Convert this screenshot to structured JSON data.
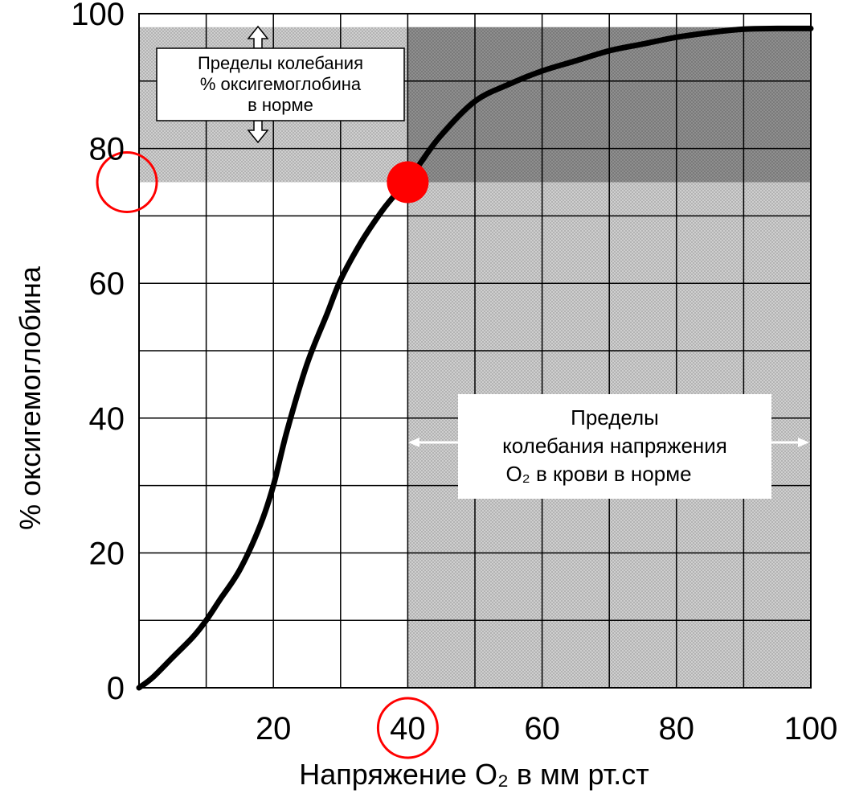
{
  "chart_data": {
    "type": "line",
    "xlabel": "Напряжение O₂ в мм рт.ст",
    "ylabel": "% оксигемоглобина",
    "xlim": [
      0,
      100
    ],
    "ylim": [
      0,
      100
    ],
    "x_ticks": [
      20,
      40,
      60,
      80,
      100
    ],
    "y_ticks": [
      0,
      20,
      40,
      60,
      80,
      100
    ],
    "x_tick_labels": [
      "20",
      "40",
      "60",
      "80",
      "100"
    ],
    "y_tick_labels": [
      "0",
      "20",
      "40",
      "60",
      "80",
      "100"
    ],
    "grid": true,
    "x_grid_step": 10,
    "y_grid_step": 10,
    "series": [
      {
        "x": [
          0,
          2,
          5,
          8,
          10,
          12,
          15,
          18,
          20,
          22,
          25,
          28,
          30,
          33,
          36,
          38,
          40,
          42,
          45,
          50,
          55,
          60,
          65,
          70,
          75,
          80,
          85,
          90,
          95,
          100
        ],
        "y": [
          0,
          1.5,
          4.5,
          7.5,
          10,
          13,
          17.5,
          24,
          30,
          38,
          48,
          55.5,
          60.5,
          66,
          70.5,
          73,
          75,
          78,
          82,
          87,
          89.5,
          91.5,
          93,
          94.5,
          95.5,
          96.5,
          97.2,
          97.7,
          97.8,
          97.8
        ],
        "color": "#000000"
      }
    ],
    "shaded_regions": [
      {
        "label": "normal_oxyhemoglobin_range",
        "y_range": [
          75,
          98
        ]
      },
      {
        "label": "normal_o2_tension_range",
        "x_range": [
          40,
          100
        ]
      }
    ],
    "highlight_point": {
      "x": 40,
      "y": 75,
      "color": "#ff0000"
    },
    "highlight_circles": [
      {
        "axis": "y",
        "value": 75,
        "color": "#ff0000"
      },
      {
        "axis": "x",
        "value": 40,
        "color": "#ff0000"
      }
    ],
    "annotations": [
      {
        "name": "oxyhemoglobin-range-note",
        "lines": [
          "Пределы колебания",
          "% оксигемоглобина",
          "в норме"
        ]
      },
      {
        "name": "o2-tension-range-note",
        "lines": [
          "Пределы",
          "колебания напряжения",
          "O₂  в крови в норме"
        ]
      }
    ]
  }
}
